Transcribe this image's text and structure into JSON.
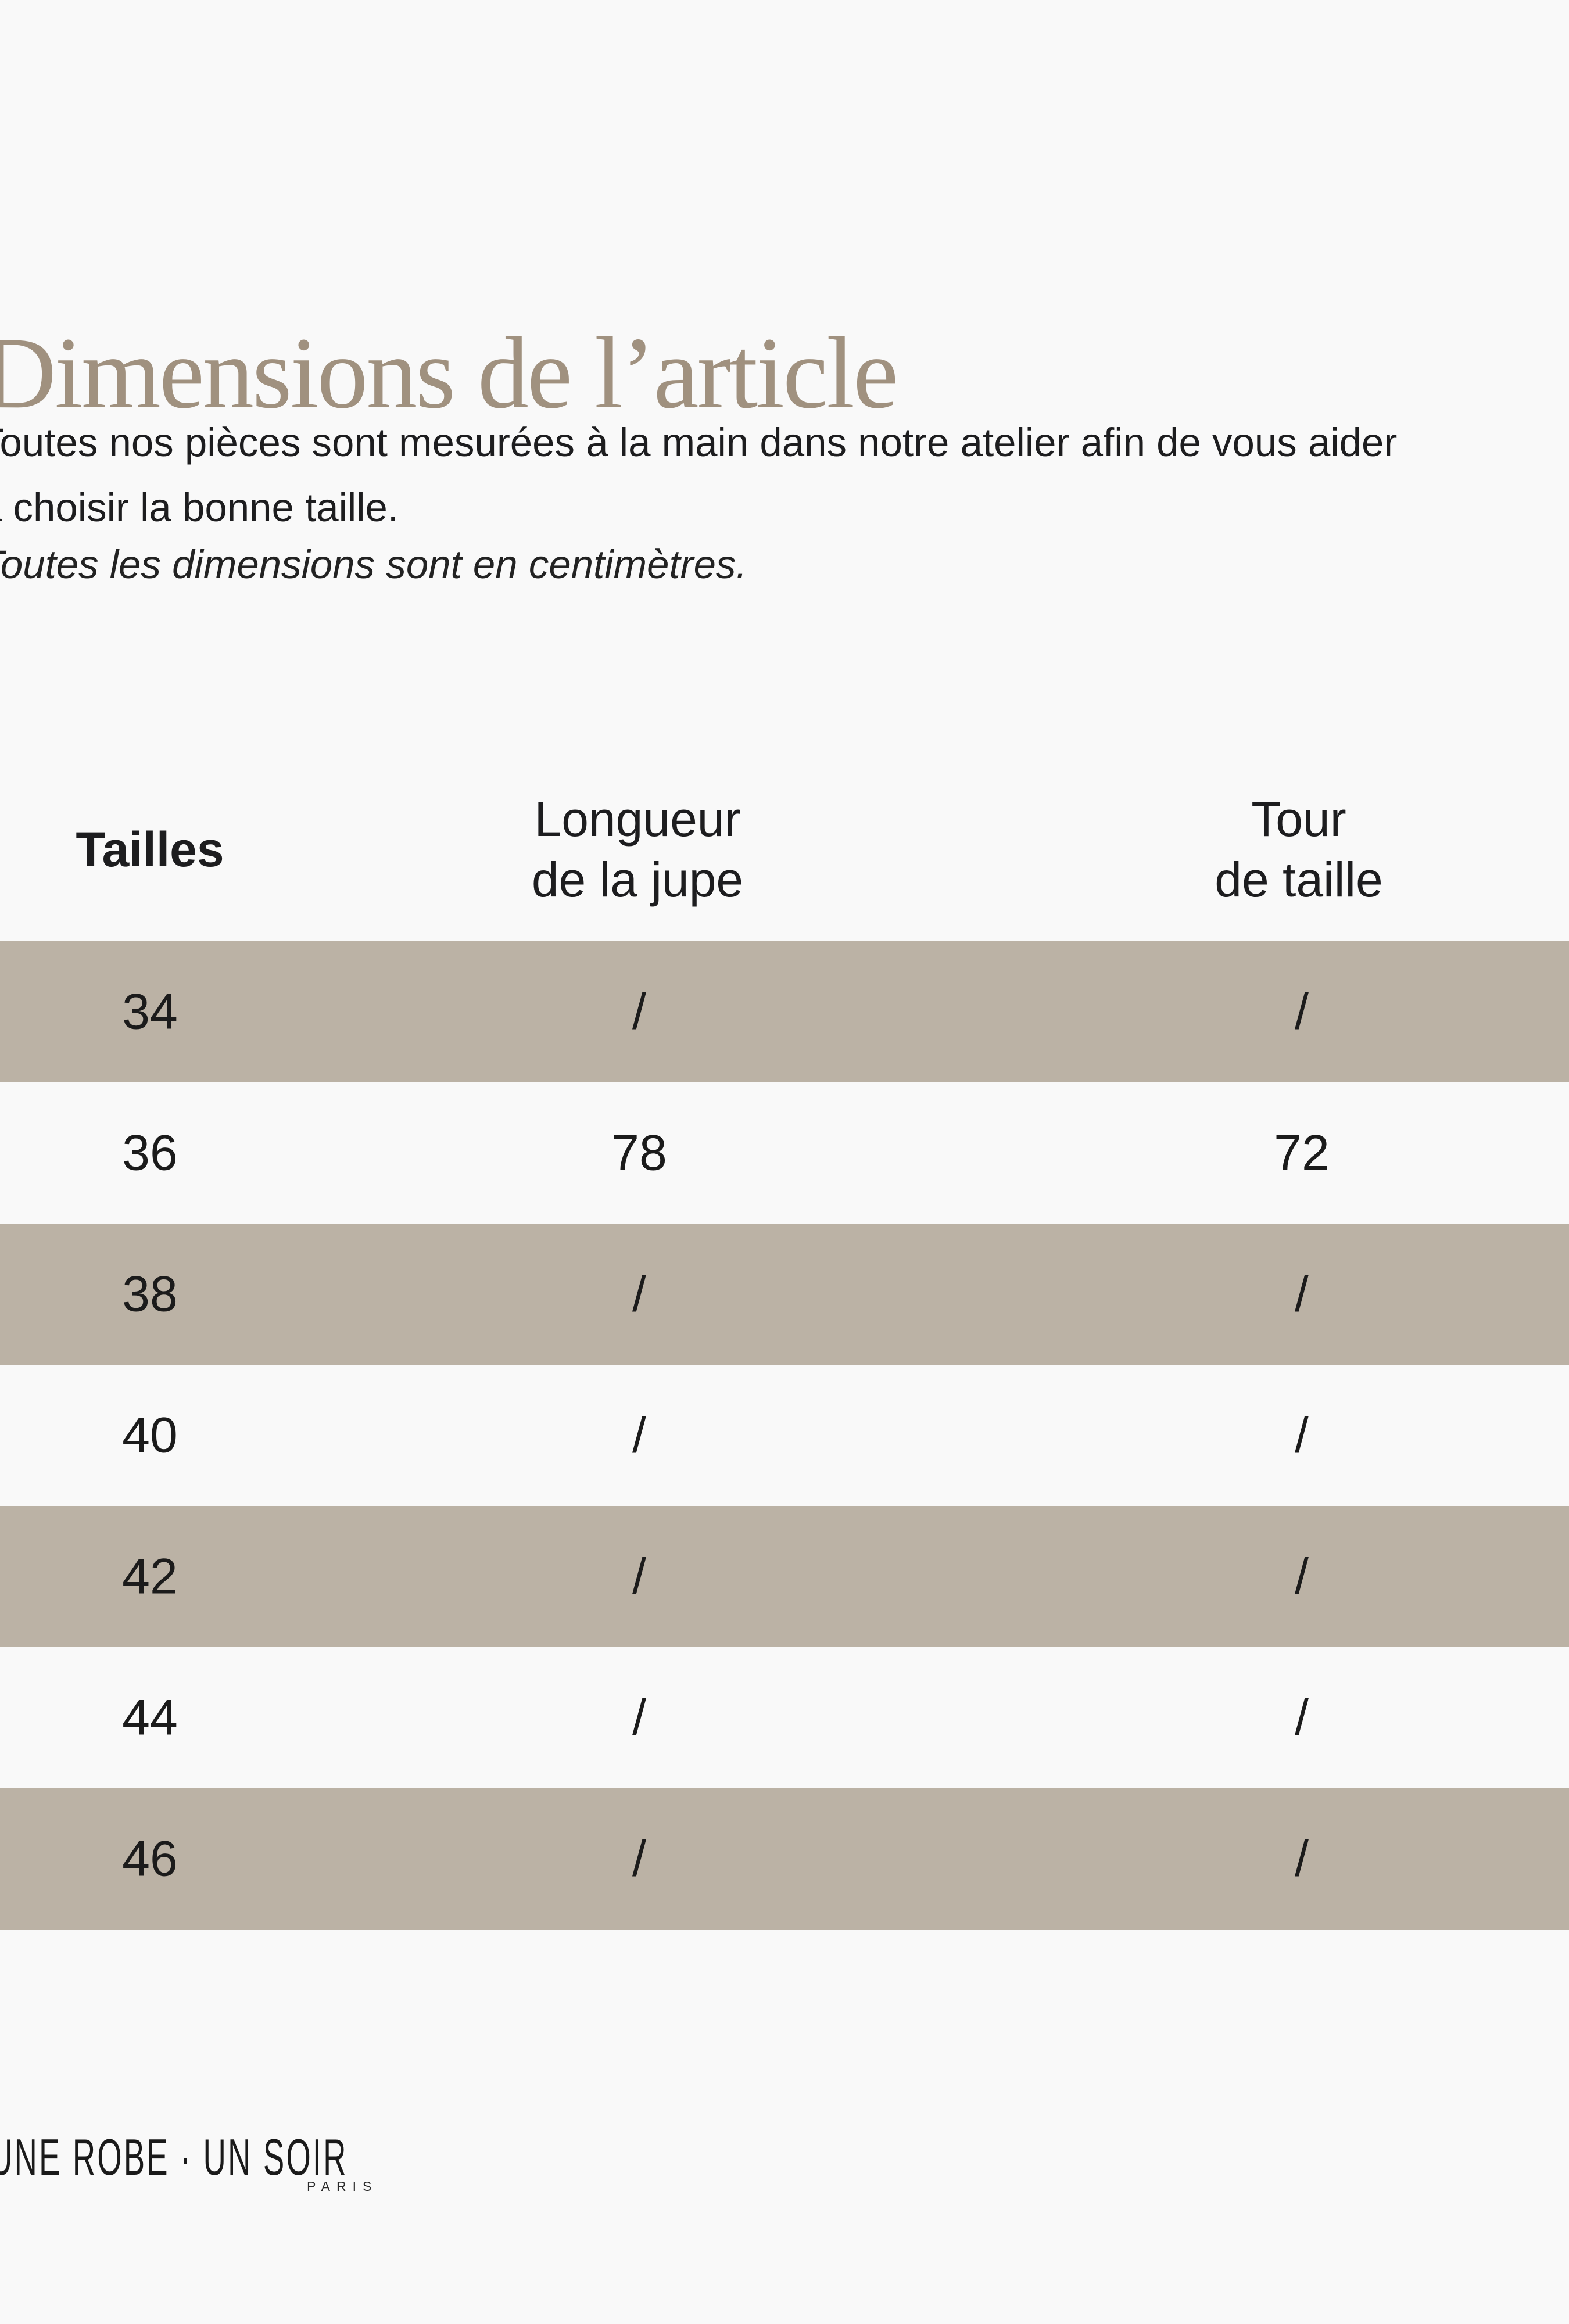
{
  "meta": {
    "background_color": "#f9f9f9",
    "stripe_color": "#bbb2a5",
    "title_color": "#a0917f",
    "text_color": "#1d1d1f"
  },
  "header": {
    "title": "Dimensions de l’article",
    "intro_line1": "Toutes nos pièces sont mesurées à la main dans notre atelier afin de vous aider",
    "intro_line2": "à choisir la bonne taille.",
    "units_note": "Toutes les dimensions sont en centimètres."
  },
  "table": {
    "columns": [
      {
        "line1": "Tailles",
        "line2": ""
      },
      {
        "line1": "Longueur",
        "line2": "de la jupe"
      },
      {
        "line1": "Tour",
        "line2": "de taille"
      }
    ],
    "rows": [
      {
        "size": "34",
        "skirt_length": "/",
        "waist": "/"
      },
      {
        "size": "36",
        "skirt_length": "78",
        "waist": "72"
      },
      {
        "size": "38",
        "skirt_length": "/",
        "waist": "/"
      },
      {
        "size": "40",
        "skirt_length": "/",
        "waist": "/"
      },
      {
        "size": "42",
        "skirt_length": "/",
        "waist": "/"
      },
      {
        "size": "44",
        "skirt_length": "/",
        "waist": "/"
      },
      {
        "size": "46",
        "skirt_length": "/",
        "waist": "/"
      }
    ]
  },
  "footer": {
    "brand": "UNE ROBE · UN SOIR",
    "city": "PARIS"
  }
}
